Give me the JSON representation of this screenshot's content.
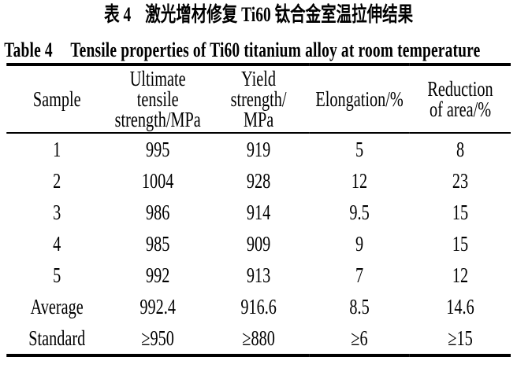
{
  "titles": {
    "zh_label": "表 4",
    "zh_text": "激光增材修复 Ti60 钛合金室温拉伸结果",
    "en_label": "Table 4",
    "en_text": "Tensile properties of Ti60 titanium alloy at room temperature"
  },
  "table": {
    "header": [
      {
        "lines": [
          "Sample"
        ]
      },
      {
        "lines": [
          "Ultimate",
          "tensile",
          "strength/MPa"
        ]
      },
      {
        "lines": [
          "Yield",
          "strength/",
          "MPa"
        ]
      },
      {
        "lines": [
          "Elongation/%"
        ]
      },
      {
        "lines": [
          "Reduction",
          "of area/%"
        ]
      }
    ],
    "rows": [
      {
        "cells": [
          "1",
          "995",
          "919",
          "5",
          "8"
        ]
      },
      {
        "cells": [
          "2",
          "1004",
          "928",
          "12",
          "23"
        ]
      },
      {
        "cells": [
          "3",
          "986",
          "914",
          "9.5",
          "15"
        ]
      },
      {
        "cells": [
          "4",
          "985",
          "909",
          "9",
          "15"
        ]
      },
      {
        "cells": [
          "5",
          "992",
          "913",
          "7",
          "12"
        ]
      },
      {
        "cells": [
          "Average",
          "992.4",
          "916.6",
          "8.5",
          "14.6"
        ]
      },
      {
        "cells": [
          "Standard",
          "≥950",
          "≥880",
          "≥6",
          "≥15"
        ]
      }
    ]
  },
  "chart_data": {
    "type": "table",
    "title": "Table 4  Tensile properties of Ti60 titanium alloy at room temperature",
    "title_zh": "表 4  激光增材修复 Ti60 钛合金室温拉伸结果",
    "columns": [
      "Sample",
      "Ultimate tensile strength/MPa",
      "Yield strength/MPa",
      "Elongation/%",
      "Reduction of area/%"
    ],
    "rows": [
      [
        "1",
        995,
        919,
        5,
        8
      ],
      [
        "2",
        1004,
        928,
        12,
        23
      ],
      [
        "3",
        986,
        914,
        9.5,
        15
      ],
      [
        "4",
        985,
        909,
        9,
        15
      ],
      [
        "5",
        992,
        913,
        7,
        12
      ],
      [
        "Average",
        992.4,
        916.6,
        8.5,
        14.6
      ],
      [
        "Standard",
        "≥950",
        "≥880",
        "≥6",
        "≥15"
      ]
    ]
  }
}
